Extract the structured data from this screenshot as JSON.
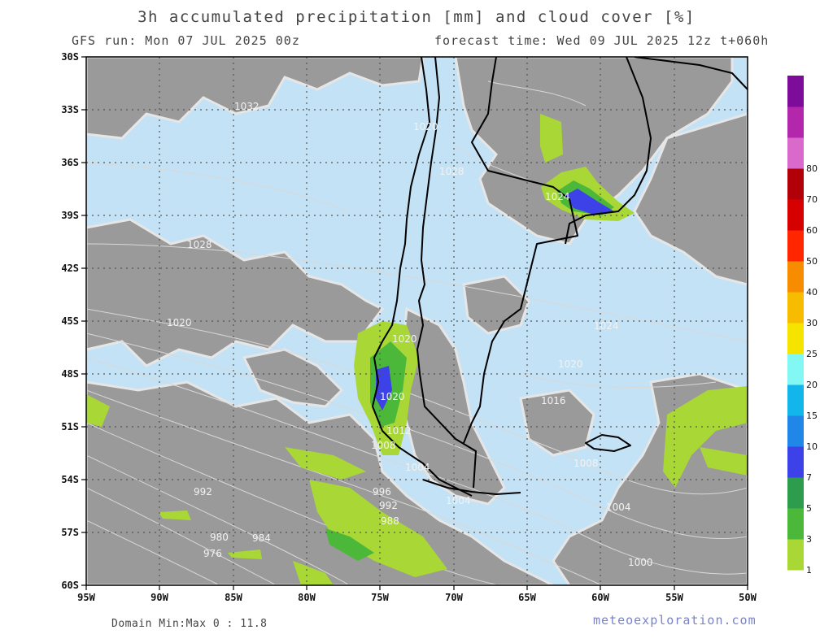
{
  "header": {
    "title": "3h accumulated precipitation [mm] and cloud cover [%]",
    "run": "GFS run: Mon 07 JUL 2025 00z",
    "forecast": "forecast time: Wed 09 JUL 2025 12z  t+060h"
  },
  "footer": {
    "domain_minmax": "Domain Min:Max 0 : 11.8",
    "brand": "meteoexploration.com"
  },
  "map": {
    "lon_range": [
      -95,
      -50
    ],
    "lat_range": [
      -60,
      -30
    ],
    "lat_ticks": [
      "30S",
      "33S",
      "36S",
      "39S",
      "42S",
      "45S",
      "48S",
      "51S",
      "54S",
      "57S",
      "60S"
    ],
    "lon_ticks": [
      "95W",
      "90W",
      "85W",
      "80W",
      "75W",
      "70W",
      "65W",
      "60W",
      "55W",
      "50W"
    ],
    "colors": {
      "ocean_clear": "#c4e2f5",
      "cloud": "#9a9a9a",
      "land_clear": "#9a9a9a",
      "coast": "#000000",
      "isobar": "#d8d8d8"
    },
    "isobar_labels": [
      "1032",
      "1028",
      "1020",
      "1024",
      "1028",
      "1020",
      "1020",
      "1020",
      "1016",
      "1024",
      "1020",
      "1012",
      "1008",
      "1004",
      "1004",
      "1008",
      "1004",
      "1000",
      "996",
      "992",
      "988",
      "992",
      "984",
      "980",
      "976"
    ]
  },
  "legend": {
    "labels": [
      "1",
      "3",
      "5",
      "7",
      "10",
      "15",
      "20",
      "25",
      "30",
      "40",
      "50",
      "60",
      "70",
      "80"
    ],
    "colors": [
      "#a9d735",
      "#4cb83a",
      "#2e9c4d",
      "#3c41e8",
      "#2087e8",
      "#13b6ea",
      "#83f7f3",
      "#f4e400",
      "#f7bb00",
      "#f88c00",
      "#ff2600",
      "#d60000",
      "#b10008",
      "#d96acb",
      "#b227ac",
      "#7d0c9b"
    ]
  }
}
